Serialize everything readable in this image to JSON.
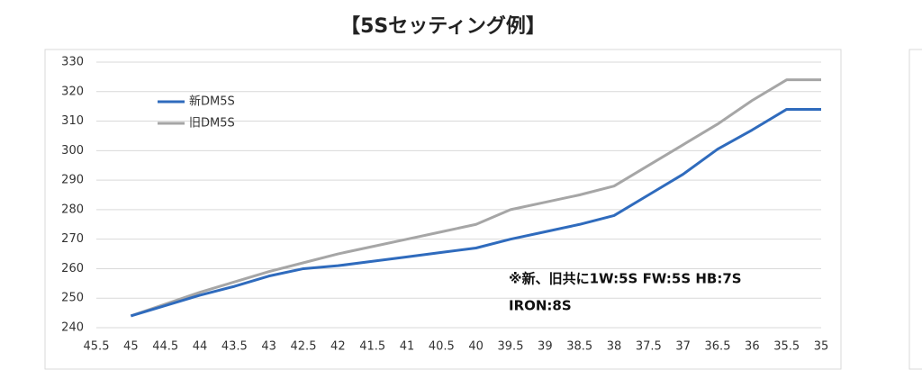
{
  "chart_data": {
    "type": "line",
    "title": "【5Sセッティング例】",
    "x": [
      45,
      44.5,
      44,
      43.5,
      43,
      42.5,
      42,
      41.5,
      41,
      40.5,
      40,
      39.5,
      39,
      38.5,
      38,
      37.5,
      37,
      36.5,
      36,
      35.5,
      35
    ],
    "xlim": [
      45.5,
      35
    ],
    "xticks": [
      45.5,
      45,
      44.5,
      44,
      43.5,
      43,
      42.5,
      42,
      41.5,
      41,
      40.5,
      40,
      39.5,
      39,
      38.5,
      38,
      37.5,
      37,
      36.5,
      36,
      35.5,
      35
    ],
    "ylim": [
      240,
      330
    ],
    "yticks": [
      240,
      250,
      260,
      270,
      280,
      290,
      300,
      310,
      320,
      330
    ],
    "grid": true,
    "legend": "upper left",
    "series": [
      {
        "name": "新DM5S",
        "color": "#2f6bbd",
        "values": [
          244,
          247.5,
          251,
          254,
          257.5,
          260,
          261,
          262.5,
          264,
          265.5,
          267,
          270,
          272.5,
          275,
          278,
          285,
          292,
          300.5,
          307,
          314,
          314
        ]
      },
      {
        "name": "旧DM5S",
        "color": "#a6a6a6",
        "values": [
          244,
          248,
          252,
          255.5,
          259,
          262,
          265,
          267.5,
          270,
          272.5,
          275,
          280,
          282.5,
          285,
          288,
          295,
          302,
          309,
          317,
          324,
          324
        ]
      }
    ],
    "annotations": [
      "※新、旧共に1W:5S FW:5S HB:7S",
      "IRON:8S"
    ]
  }
}
